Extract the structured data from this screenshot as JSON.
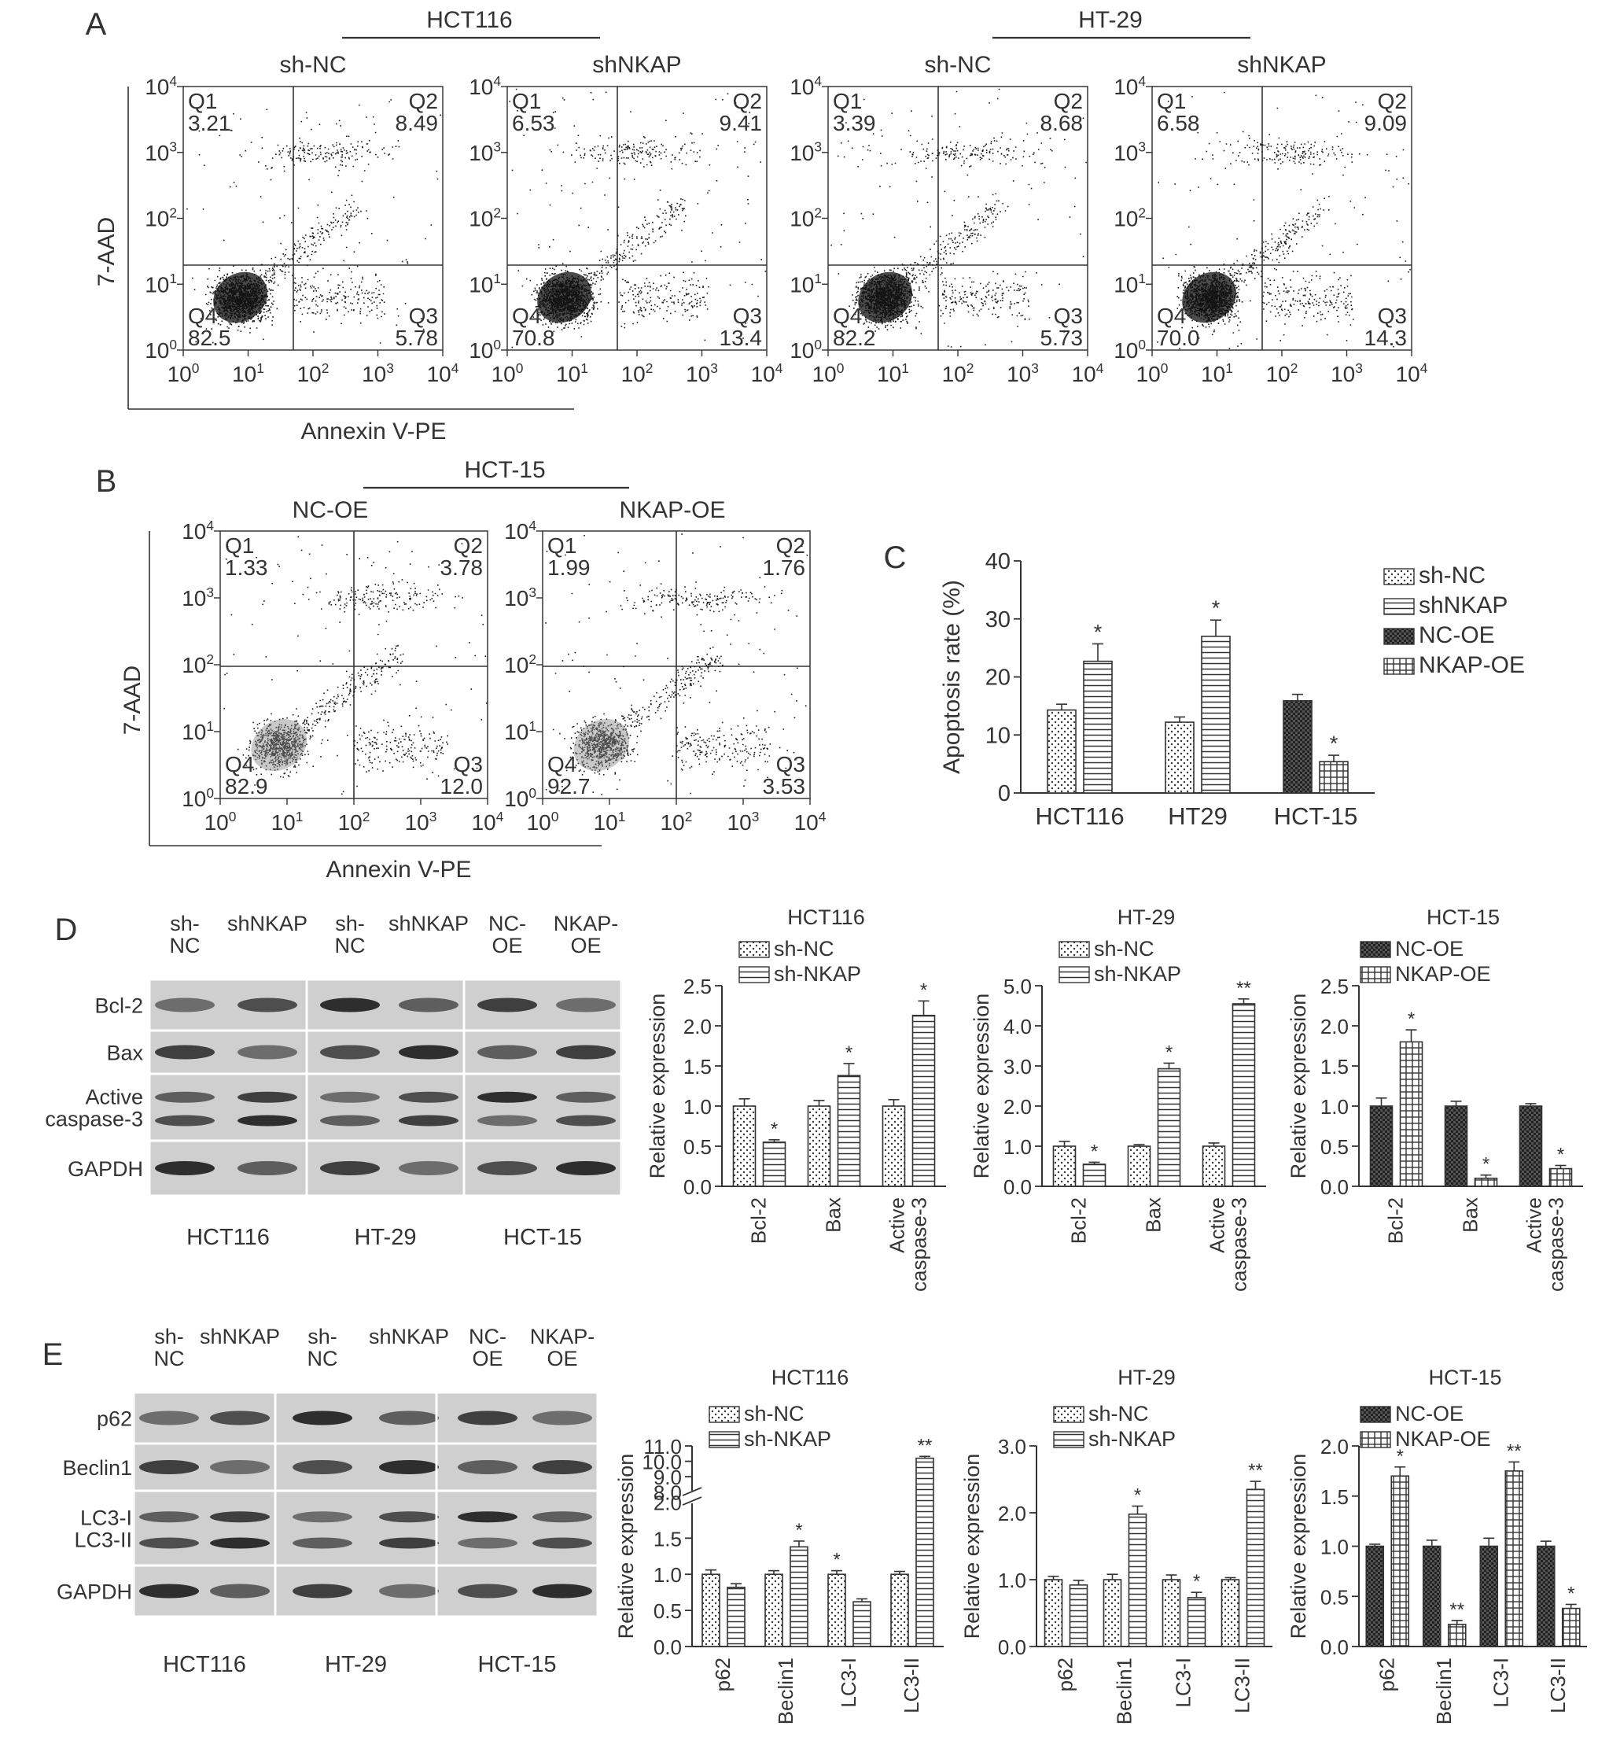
{
  "colors": {
    "ink": "#333333",
    "dots": "#1a1a1a",
    "blot_bg": "#cfcfcf",
    "band": "#1e1e1e"
  },
  "panel_labels": [
    "A",
    "B",
    "C",
    "D",
    "E"
  ],
  "panel_a": {
    "groups": [
      "HCT116",
      "HT-29"
    ],
    "xlabel": "Annexin V-PE",
    "ylabel": "7-AAD",
    "tick_exponents": [
      "0",
      "1",
      "2",
      "3",
      "4"
    ],
    "plots": [
      {
        "title": "sh-NC",
        "q1": "3.21",
        "q2": "8.49",
        "q3": "5.78",
        "q4": "82.5"
      },
      {
        "title": "shNKAP",
        "q1": "6.53",
        "q2": "9.41",
        "q3": "13.4",
        "q4": "70.8"
      },
      {
        "title": "sh-NC",
        "q1": "3.39",
        "q2": "8.68",
        "q3": "5.73",
        "q4": "82.2"
      },
      {
        "title": "shNKAP",
        "q1": "6.58",
        "q2": "9.09",
        "q3": "14.3",
        "q4": "70.0"
      }
    ]
  },
  "panel_b": {
    "group": "HCT-15",
    "xlabel": "Annexin V-PE",
    "ylabel": "7-AAD",
    "plots": [
      {
        "title": "NC-OE",
        "q1": "1.33",
        "q2": "3.78",
        "q3": "12.0",
        "q4": "82.9"
      },
      {
        "title": "NKAP-OE",
        "q1": "1.99",
        "q2": "1.76",
        "q3": "3.53",
        "q4": "92.7"
      }
    ]
  },
  "quadrant_names": [
    "Q1",
    "Q2",
    "Q3",
    "Q4"
  ],
  "panel_d_blot": {
    "lanes": [
      "sh-\nNC",
      "shNKAP",
      "sh-\nNC",
      "shNKAP",
      "NC-\nOE",
      "NKAP-\nOE"
    ],
    "rows": [
      "Bcl-2",
      "Bax",
      "Active\ncaspase-3",
      "GAPDH"
    ],
    "groups": [
      "HCT116",
      "HT-29",
      "HCT-15"
    ]
  },
  "panel_e_blot": {
    "lanes": [
      "sh-\nNC",
      "shNKAP",
      "sh-\nNC",
      "shNKAP",
      "NC-\nOE",
      "NKAP-\nOE"
    ],
    "rows": [
      "p62",
      "Beclin1",
      "LC3-I\nLC3-II",
      "GAPDH"
    ],
    "groups": [
      "HCT116",
      "HT-29",
      "HCT-15"
    ]
  },
  "chart_data": [
    {
      "type": "bar",
      "panel": "C",
      "title": "",
      "xlabel": "",
      "ylabel": "Apoptosis rate (%)",
      "ylim": [
        0,
        40
      ],
      "yticks": [
        "0",
        "10",
        "20",
        "30",
        "40"
      ],
      "legend": [
        "sh-NC",
        "shNKAP",
        "NC-OE",
        "NKAP-OE"
      ],
      "legend_position": "top-right",
      "categories": [
        "HCT116",
        "HT29",
        "HCT-15"
      ],
      "series": [
        {
          "name": "sh-NC",
          "values": [
            14.3,
            12.2,
            null
          ],
          "errors": [
            1.0,
            0.9,
            null
          ],
          "sig": [
            "",
            "",
            ""
          ]
        },
        {
          "name": "shNKAP",
          "values": [
            22.7,
            27.0,
            null
          ],
          "errors": [
            3.0,
            2.8,
            null
          ],
          "sig": [
            "*",
            "*",
            ""
          ]
        },
        {
          "name": "NC-OE",
          "values": [
            null,
            null,
            15.9
          ],
          "errors": [
            null,
            null,
            1.1
          ],
          "sig": [
            "",
            "",
            ""
          ]
        },
        {
          "name": "NKAP-OE",
          "values": [
            null,
            null,
            5.4
          ],
          "errors": [
            null,
            null,
            1.1
          ],
          "sig": [
            "",
            "",
            "*"
          ]
        }
      ]
    },
    {
      "type": "bar",
      "panel": "D",
      "title": "HCT116",
      "xlabel": "",
      "ylabel": "Relative expression",
      "ylim": [
        0,
        2.5
      ],
      "yticks": [
        "0.0",
        "0.5",
        "1.0",
        "1.5",
        "2.0",
        "2.5"
      ],
      "categories": [
        "Bcl-2",
        "Bax",
        "Active\ncaspase-3"
      ],
      "series": [
        {
          "name": "sh-NC",
          "values": [
            1.0,
            1.0,
            1.0
          ],
          "errors": [
            0.09,
            0.07,
            0.08
          ],
          "sig": [
            "",
            "",
            ""
          ]
        },
        {
          "name": "sh-NKAP",
          "values": [
            0.55,
            1.38,
            2.13
          ],
          "errors": [
            0.03,
            0.15,
            0.18
          ],
          "sig": [
            "*",
            "*",
            "*"
          ]
        }
      ]
    },
    {
      "type": "bar",
      "panel": "D",
      "title": "HT-29",
      "xlabel": "",
      "ylabel": "Relative expression",
      "ylim": [
        0,
        5.0
      ],
      "yticks": [
        "0.0",
        "1.0",
        "2.0",
        "3.0",
        "4.0",
        "5.0"
      ],
      "categories": [
        "Bcl-2",
        "Bax",
        "Active\ncaspase-3"
      ],
      "series": [
        {
          "name": "sh-NC",
          "values": [
            1.0,
            1.0,
            1.0
          ],
          "errors": [
            0.12,
            0.04,
            0.08
          ],
          "sig": [
            "",
            "",
            ""
          ]
        },
        {
          "name": "sh-NKAP",
          "values": [
            0.55,
            2.93,
            4.55
          ],
          "errors": [
            0.05,
            0.14,
            0.12
          ],
          "sig": [
            "*",
            "*",
            "**"
          ]
        }
      ]
    },
    {
      "type": "bar",
      "panel": "D",
      "title": "HCT-15",
      "xlabel": "",
      "ylabel": "Relative expression",
      "ylim": [
        0,
        2.5
      ],
      "yticks": [
        "0.0",
        "0.5",
        "1.0",
        "1.5",
        "2.0",
        "2.5"
      ],
      "categories": [
        "Bcl-2",
        "Bax",
        "Active\ncaspase-3"
      ],
      "series": [
        {
          "name": "NC-OE",
          "values": [
            1.0,
            1.0,
            1.0
          ],
          "errors": [
            0.1,
            0.06,
            0.03
          ],
          "sig": [
            "",
            "",
            ""
          ]
        },
        {
          "name": "NKAP-OE",
          "values": [
            1.8,
            0.1,
            0.22
          ],
          "errors": [
            0.15,
            0.04,
            0.04
          ],
          "sig": [
            "*",
            "*",
            "*"
          ]
        }
      ]
    },
    {
      "type": "bar",
      "panel": "E",
      "title": "HCT116",
      "xlabel": "",
      "ylabel": "Relative expression",
      "ylim": [
        0,
        11.0
      ],
      "axis_break": [
        2.0,
        8.0
      ],
      "yticks": [
        "0.0",
        "0.5",
        "1.0",
        "1.5",
        "2.0",
        "8.0",
        "9.0",
        "10.0",
        "11.0"
      ],
      "categories": [
        "p62",
        "Beclin1",
        "LC3-I",
        "LC3-II"
      ],
      "series": [
        {
          "name": "sh-NC",
          "values": [
            1.0,
            1.0,
            1.0,
            1.0
          ],
          "errors": [
            0.06,
            0.05,
            0.05,
            0.04
          ],
          "sig": [
            "",
            "",
            "*",
            ""
          ]
        },
        {
          "name": "sh-NKAP",
          "values": [
            0.82,
            1.38,
            0.62,
            10.2
          ],
          "errors": [
            0.05,
            0.08,
            0.04,
            0.12
          ],
          "sig": [
            "",
            "*",
            "",
            "**"
          ]
        }
      ]
    },
    {
      "type": "bar",
      "panel": "E",
      "title": "HT-29",
      "xlabel": "",
      "ylabel": "Relative expression",
      "ylim": [
        0,
        3.0
      ],
      "yticks": [
        "0.0",
        "1.0",
        "2.0",
        "3.0"
      ],
      "categories": [
        "p62",
        "Beclin1",
        "LC3-I",
        "LC3-II"
      ],
      "series": [
        {
          "name": "sh-NC",
          "values": [
            1.0,
            1.0,
            1.0,
            1.0
          ],
          "errors": [
            0.05,
            0.08,
            0.07,
            0.03
          ],
          "sig": [
            "",
            "",
            "",
            ""
          ]
        },
        {
          "name": "sh-NKAP",
          "values": [
            0.92,
            1.98,
            0.73,
            2.35
          ],
          "errors": [
            0.07,
            0.12,
            0.08,
            0.12
          ],
          "sig": [
            "",
            "*",
            "*",
            "**"
          ]
        }
      ]
    },
    {
      "type": "bar",
      "panel": "E",
      "title": "HCT-15",
      "xlabel": "",
      "ylabel": "Relative expression",
      "ylim": [
        0,
        2.0
      ],
      "yticks": [
        "0.0",
        "0.5",
        "1.0",
        "1.5",
        "2.0"
      ],
      "categories": [
        "p62",
        "Beclin1",
        "LC3-I",
        "LC3-II"
      ],
      "series": [
        {
          "name": "NC-OE",
          "values": [
            1.0,
            1.0,
            1.0,
            1.0
          ],
          "errors": [
            0.02,
            0.06,
            0.08,
            0.05
          ],
          "sig": [
            "",
            "",
            "",
            ""
          ]
        },
        {
          "name": "NKAP-OE",
          "values": [
            1.7,
            0.22,
            1.75,
            0.38
          ],
          "errors": [
            0.09,
            0.04,
            0.09,
            0.04
          ],
          "sig": [
            "*",
            "**",
            "**",
            "*"
          ]
        }
      ]
    }
  ]
}
